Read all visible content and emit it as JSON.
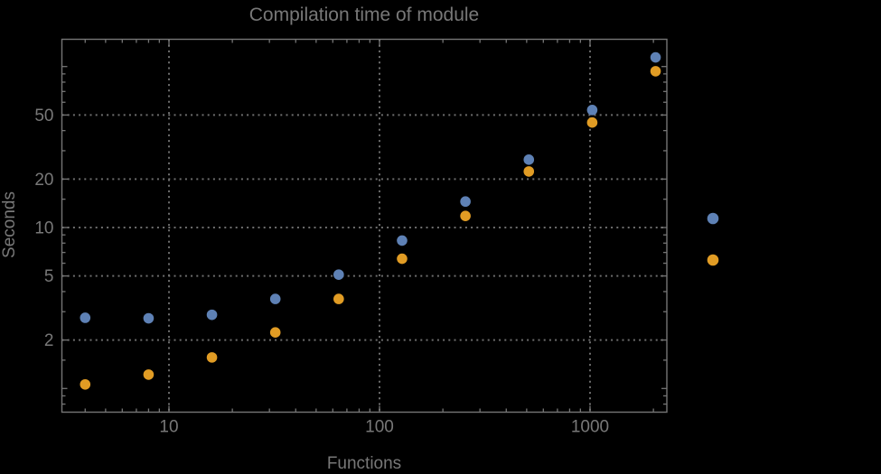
{
  "style": {
    "background": "#000000",
    "text_color": "#787878",
    "frame_color": "#757575",
    "grid_color": "#6e6e6e",
    "blue": "#5E81B5",
    "orange": "#E19C24"
  },
  "chart_data": {
    "type": "scatter",
    "title": "Compilation time of module",
    "xlabel": "Functions",
    "ylabel": "Seconds",
    "x_scale": "log",
    "y_scale": "log",
    "x": [
      4,
      8,
      16,
      32,
      64,
      128,
      256,
      512,
      1024,
      2048
    ],
    "series": [
      {
        "name": "series-blue",
        "color": "#5E81B5",
        "values": [
          2.75,
          2.73,
          2.87,
          3.6,
          5.1,
          8.3,
          14.5,
          26.4,
          53.7,
          114
        ]
      },
      {
        "name": "series-orange",
        "color": "#E19C24",
        "values": [
          1.06,
          1.22,
          1.56,
          2.23,
          3.6,
          6.4,
          11.8,
          22.3,
          44.9,
          93.5
        ]
      }
    ],
    "x_tick_labels": [
      10,
      100,
      1000
    ],
    "y_tick_labels": [
      2,
      5,
      10,
      20,
      50
    ],
    "x_minor_ticks": [
      4,
      5,
      6,
      7,
      8,
      9,
      20,
      30,
      40,
      50,
      60,
      70,
      80,
      90,
      200,
      300,
      400,
      500,
      600,
      700,
      800,
      900,
      2000
    ],
    "y_minor_ticks": [
      0.8,
      0.9,
      1.5,
      3,
      4,
      6,
      7,
      8,
      9,
      15,
      30,
      40,
      60,
      70,
      80,
      90
    ],
    "y_unlabeled_major_ticks": [
      1,
      100
    ],
    "xlim": [
      3.1,
      2320
    ],
    "ylim": [
      0.73,
      148
    ],
    "grid": "dotted lines at labeled ticks only",
    "legend": {
      "position": "right-outside",
      "labels_visible": false,
      "entries": [
        {
          "name": "series-blue",
          "color": "#5E81B5"
        },
        {
          "name": "series-orange",
          "color": "#E19C24"
        }
      ]
    }
  }
}
